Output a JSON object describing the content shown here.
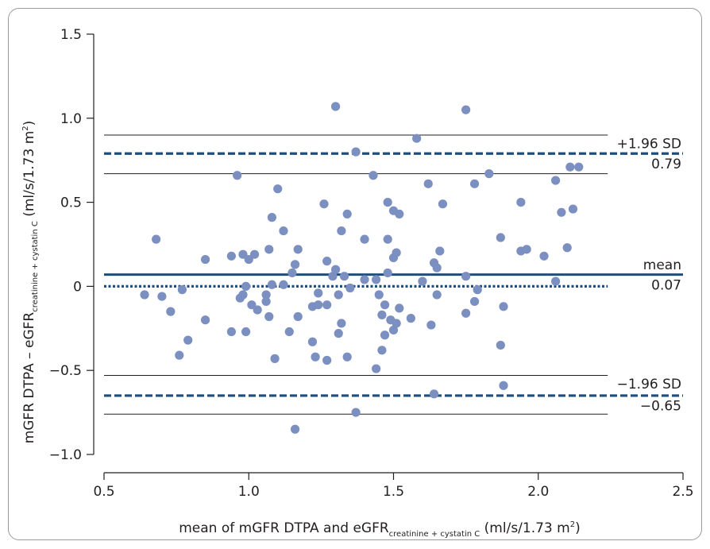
{
  "chart_data": {
    "type": "scatter",
    "title": "",
    "xlabel": {
      "main": "mean of mGFR DTPA and eGFR",
      "subscript": "creatinine + cystatin C",
      "unit_pre": " (ml/s/1.73 m",
      "unit_sup": "2",
      "unit_post": ")"
    },
    "ylabel": {
      "main": "mGFR DTPA – eGFR",
      "subscript": "creatinine + cystatin C",
      "unit_pre": " (ml/s/1.73 m",
      "unit_sup": "2",
      "unit_post": ")"
    },
    "xlim": [
      0.5,
      2.5
    ],
    "ylim": [
      -1.1,
      1.5
    ],
    "xticks": [
      0.5,
      1.0,
      1.5,
      2.0,
      2.5
    ],
    "xtick_labels": [
      "0.5",
      "1.0",
      "1.5",
      "2.0",
      "2.5"
    ],
    "yticks": [
      -1.0,
      -0.5,
      0,
      0.5,
      1.0,
      1.5
    ],
    "ytick_labels": [
      "−1.0",
      "−0.5",
      "0",
      "0.5",
      "1.0",
      "1.5"
    ],
    "grid": false,
    "point_color": "#7b8fc1",
    "reference_lines": [
      {
        "name": "upper_ci_high",
        "y": 0.9,
        "style": "solid-thin",
        "color": "#231f20",
        "x_range": [
          0.5,
          2.24
        ]
      },
      {
        "name": "upper_loa",
        "y": 0.79,
        "style": "dashed",
        "color": "#1f4e7d",
        "x_range": [
          0.5,
          2.5
        ]
      },
      {
        "name": "upper_ci_low",
        "y": 0.67,
        "style": "solid-thin",
        "color": "#231f20",
        "x_range": [
          0.5,
          2.24
        ]
      },
      {
        "name": "mean",
        "y": 0.07,
        "style": "solid-thick",
        "color": "#1f4e7d",
        "x_range": [
          0.5,
          2.5
        ]
      },
      {
        "name": "zero",
        "y": 0.0,
        "style": "dotted",
        "color": "#1f4e7d",
        "x_range": [
          0.5,
          2.24
        ]
      },
      {
        "name": "lower_ci_high",
        "y": -0.53,
        "style": "solid-thin",
        "color": "#231f20",
        "x_range": [
          0.5,
          2.24
        ]
      },
      {
        "name": "lower_loa",
        "y": -0.65,
        "style": "dashed",
        "color": "#1f4e7d",
        "x_range": [
          0.5,
          2.5
        ]
      },
      {
        "name": "lower_ci_low",
        "y": -0.76,
        "style": "solid-thin",
        "color": "#231f20",
        "x_range": [
          0.5,
          2.24
        ]
      }
    ],
    "annotations": [
      {
        "text": "+1.96 SD",
        "y": 0.85
      },
      {
        "text": "0.79",
        "y": 0.73
      },
      {
        "text": "mean",
        "y": 0.13
      },
      {
        "text": "0.07",
        "y": 0.01
      },
      {
        "text": "−1.96 SD",
        "y": -0.58
      },
      {
        "text": "−0.65",
        "y": -0.71
      }
    ],
    "points": [
      {
        "x": 0.68,
        "y": 0.28
      },
      {
        "x": 0.64,
        "y": -0.05
      },
      {
        "x": 0.7,
        "y": -0.06
      },
      {
        "x": 0.73,
        "y": -0.15
      },
      {
        "x": 0.76,
        "y": -0.41
      },
      {
        "x": 0.77,
        "y": -0.02
      },
      {
        "x": 0.79,
        "y": -0.32
      },
      {
        "x": 0.85,
        "y": 0.16
      },
      {
        "x": 0.85,
        "y": -0.2
      },
      {
        "x": 0.94,
        "y": 0.18
      },
      {
        "x": 0.94,
        "y": -0.27
      },
      {
        "x": 0.96,
        "y": 0.66
      },
      {
        "x": 0.97,
        "y": -0.07
      },
      {
        "x": 0.98,
        "y": -0.05
      },
      {
        "x": 0.98,
        "y": 0.19
      },
      {
        "x": 0.99,
        "y": 0.0
      },
      {
        "x": 0.99,
        "y": -0.27
      },
      {
        "x": 1.0,
        "y": 0.16
      },
      {
        "x": 1.01,
        "y": -0.11
      },
      {
        "x": 1.02,
        "y": 0.19
      },
      {
        "x": 1.03,
        "y": -0.14
      },
      {
        "x": 1.06,
        "y": -0.05
      },
      {
        "x": 1.06,
        "y": -0.09
      },
      {
        "x": 1.07,
        "y": -0.18
      },
      {
        "x": 1.07,
        "y": 0.22
      },
      {
        "x": 1.08,
        "y": 0.41
      },
      {
        "x": 1.08,
        "y": 0.01
      },
      {
        "x": 1.09,
        "y": -0.43
      },
      {
        "x": 1.1,
        "y": 0.58
      },
      {
        "x": 1.12,
        "y": 0.33
      },
      {
        "x": 1.12,
        "y": 0.01
      },
      {
        "x": 1.14,
        "y": -0.27
      },
      {
        "x": 1.15,
        "y": 0.08
      },
      {
        "x": 1.16,
        "y": 0.13
      },
      {
        "x": 1.16,
        "y": -0.85
      },
      {
        "x": 1.17,
        "y": 0.22
      },
      {
        "x": 1.17,
        "y": -0.18
      },
      {
        "x": 1.22,
        "y": -0.12
      },
      {
        "x": 1.22,
        "y": -0.33
      },
      {
        "x": 1.23,
        "y": -0.42
      },
      {
        "x": 1.24,
        "y": -0.11
      },
      {
        "x": 1.24,
        "y": -0.04
      },
      {
        "x": 1.26,
        "y": 0.49
      },
      {
        "x": 1.27,
        "y": -0.44
      },
      {
        "x": 1.27,
        "y": 0.15
      },
      {
        "x": 1.27,
        "y": -0.11
      },
      {
        "x": 1.29,
        "y": 0.06
      },
      {
        "x": 1.3,
        "y": 1.07
      },
      {
        "x": 1.3,
        "y": 0.1
      },
      {
        "x": 1.31,
        "y": -0.05
      },
      {
        "x": 1.31,
        "y": -0.28
      },
      {
        "x": 1.32,
        "y": 0.33
      },
      {
        "x": 1.32,
        "y": -0.22
      },
      {
        "x": 1.33,
        "y": 0.06
      },
      {
        "x": 1.34,
        "y": 0.43
      },
      {
        "x": 1.34,
        "y": -0.42
      },
      {
        "x": 1.35,
        "y": -0.01
      },
      {
        "x": 1.37,
        "y": 0.8
      },
      {
        "x": 1.37,
        "y": -0.75
      },
      {
        "x": 1.4,
        "y": 0.28
      },
      {
        "x": 1.4,
        "y": 0.04
      },
      {
        "x": 1.43,
        "y": 0.66
      },
      {
        "x": 1.44,
        "y": 0.04
      },
      {
        "x": 1.44,
        "y": -0.49
      },
      {
        "x": 1.45,
        "y": -0.05
      },
      {
        "x": 1.46,
        "y": -0.38
      },
      {
        "x": 1.46,
        "y": -0.17
      },
      {
        "x": 1.47,
        "y": -0.29
      },
      {
        "x": 1.47,
        "y": -0.11
      },
      {
        "x": 1.48,
        "y": 0.5
      },
      {
        "x": 1.48,
        "y": 0.28
      },
      {
        "x": 1.48,
        "y": 0.08
      },
      {
        "x": 1.49,
        "y": -0.2
      },
      {
        "x": 1.5,
        "y": 0.45
      },
      {
        "x": 1.5,
        "y": 0.17
      },
      {
        "x": 1.5,
        "y": -0.26
      },
      {
        "x": 1.51,
        "y": 0.2
      },
      {
        "x": 1.51,
        "y": -0.22
      },
      {
        "x": 1.52,
        "y": 0.43
      },
      {
        "x": 1.52,
        "y": -0.13
      },
      {
        "x": 1.56,
        "y": -0.19
      },
      {
        "x": 1.58,
        "y": 0.88
      },
      {
        "x": 1.6,
        "y": 0.03
      },
      {
        "x": 1.62,
        "y": 0.61
      },
      {
        "x": 1.63,
        "y": -0.23
      },
      {
        "x": 1.64,
        "y": 0.14
      },
      {
        "x": 1.64,
        "y": -0.64
      },
      {
        "x": 1.65,
        "y": 0.11
      },
      {
        "x": 1.65,
        "y": -0.05
      },
      {
        "x": 1.66,
        "y": 0.21
      },
      {
        "x": 1.67,
        "y": 0.49
      },
      {
        "x": 1.75,
        "y": 1.05
      },
      {
        "x": 1.75,
        "y": 0.06
      },
      {
        "x": 1.75,
        "y": -0.16
      },
      {
        "x": 1.78,
        "y": 0.61
      },
      {
        "x": 1.78,
        "y": -0.09
      },
      {
        "x": 1.79,
        "y": -0.02
      },
      {
        "x": 1.83,
        "y": 0.67
      },
      {
        "x": 1.87,
        "y": 0.29
      },
      {
        "x": 1.87,
        "y": -0.35
      },
      {
        "x": 1.88,
        "y": -0.12
      },
      {
        "x": 1.88,
        "y": -0.59
      },
      {
        "x": 1.94,
        "y": 0.5
      },
      {
        "x": 1.94,
        "y": 0.21
      },
      {
        "x": 1.96,
        "y": 0.22
      },
      {
        "x": 2.02,
        "y": 0.18
      },
      {
        "x": 2.06,
        "y": 0.63
      },
      {
        "x": 2.06,
        "y": 0.03
      },
      {
        "x": 2.08,
        "y": 0.44
      },
      {
        "x": 2.1,
        "y": 0.23
      },
      {
        "x": 2.11,
        "y": 0.71
      },
      {
        "x": 2.12,
        "y": 0.46
      },
      {
        "x": 2.14,
        "y": 0.71
      }
    ]
  }
}
